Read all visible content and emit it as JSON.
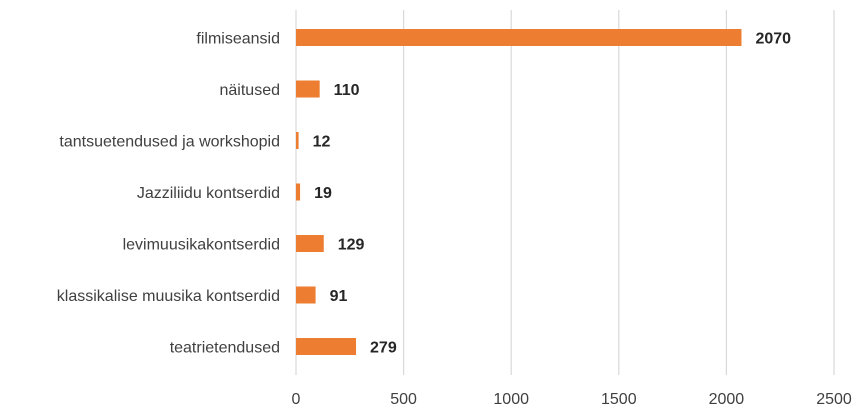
{
  "chart_data": {
    "type": "bar",
    "orientation": "horizontal",
    "title": "",
    "xlabel": "",
    "ylabel": "",
    "categories": [
      "filmiseansid",
      "näitused",
      "tantsuetendused ja workshopid",
      "Jazziliidu kontserdid",
      "levimuusikakontserdid",
      "klassikalise muusika kontserdid",
      "teatrietendused"
    ],
    "values": [
      2070,
      110,
      12,
      19,
      129,
      91,
      279
    ],
    "data_labels": [
      "2070",
      "110",
      "12",
      "19",
      "129",
      "91",
      "279"
    ],
    "xlim": [
      0,
      2500
    ],
    "xticks": [
      0,
      500,
      1000,
      1500,
      2000,
      2500
    ],
    "xtick_labels": [
      "0",
      "500",
      "1000",
      "1500",
      "2000",
      "2500"
    ],
    "grid": "vertical",
    "legend": "none",
    "colors": {
      "bar": "#ED7D31",
      "grid": "#D9D9D9",
      "text": "#404040",
      "value_text": "#262626"
    }
  }
}
